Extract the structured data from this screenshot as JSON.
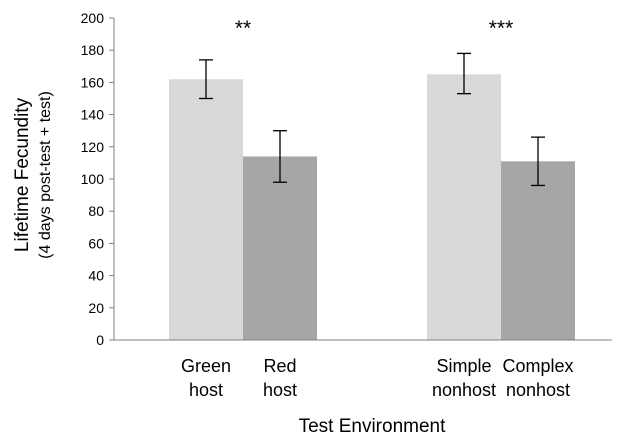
{
  "chart_data": {
    "type": "bar",
    "title": "",
    "xlabel": "Test Environment",
    "ylabel": "Lifetime Fecundity",
    "ylabel_sub": "(4 days post-test + test)",
    "ylim": [
      0,
      200
    ],
    "yticks": [
      0,
      20,
      40,
      60,
      80,
      100,
      120,
      140,
      160,
      180,
      200
    ],
    "grid": false,
    "legend": "none",
    "bars": [
      {
        "category": [
          "Green",
          "host"
        ],
        "value": 162,
        "err_low": 150,
        "err_high": 174,
        "color": "#d9d9d9"
      },
      {
        "category": [
          "Red",
          "host"
        ],
        "value": 114,
        "err_low": 98,
        "err_high": 130,
        "color": "#a6a6a6"
      },
      {
        "category": [
          "Simple",
          "nonhost"
        ],
        "value": 165,
        "err_low": 153,
        "err_high": 178,
        "color": "#d9d9d9"
      },
      {
        "category": [
          "Complex",
          "nonhost"
        ],
        "value": 111,
        "err_low": 96,
        "err_high": 126,
        "color": "#a6a6a6"
      }
    ],
    "annotations": [
      {
        "text": "**",
        "pair": [
          0,
          1
        ]
      },
      {
        "text": "***",
        "pair": [
          2,
          3
        ]
      }
    ]
  }
}
